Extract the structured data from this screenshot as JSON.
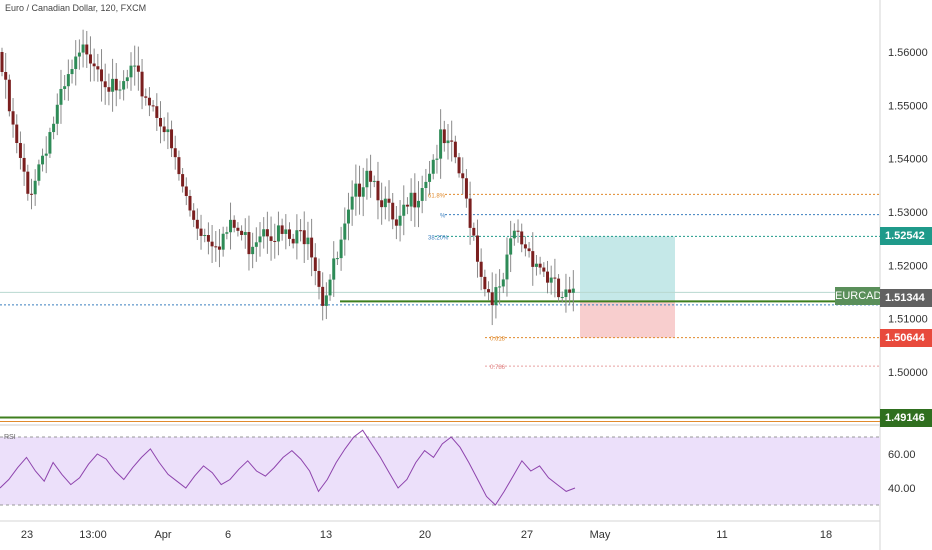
{
  "chart_title": "Euro / Canadian Dollar, 120, FXCM",
  "symbol_label": "EURCAD",
  "colors": {
    "up": "#2e8b57",
    "down": "#7a1f1f",
    "wick": "#8a8a8a",
    "target_zone": "#b2e0e0",
    "stop_zone": "#f7c6c6",
    "fib_orange": "#e08a2c",
    "fib_blue": "#3a7fbf",
    "support_green": "#3f7f1f",
    "rsi_bg": "#ece0fa",
    "rsi_line": "#8e44ad",
    "badge_teal": "#1f9a8a",
    "badge_red": "#e84a3c",
    "badge_green": "#2f6f1f",
    "badge_grey": "#616161"
  },
  "badges": {
    "target": "1.52542",
    "current": "1.51344",
    "stop": "1.50644",
    "support": "1.49146"
  },
  "fib_labels": [
    "61.8%",
    "%",
    "38.20%",
    "0.618",
    "0.786"
  ],
  "rsi_title": "RSI",
  "chart_data": [
    {
      "type": "line",
      "title": "Euro / Canadian Dollar, 120, FXCM",
      "series_kind": "candlestick",
      "y_axis_ticks": [
        "1.56000",
        "1.55000",
        "1.54000",
        "1.53000",
        "1.52000",
        "1.51000",
        "1.50000"
      ],
      "ylim": [
        1.4866,
        1.5696
      ],
      "x_tick_labels": [
        "23",
        "13:00",
        "Apr",
        "6",
        "13",
        "20",
        "27",
        "May",
        "11",
        "18"
      ],
      "price_path": [
        [
          0,
          1.56
        ],
        [
          4,
          1.545
        ],
        [
          8,
          1.533
        ],
        [
          12,
          1.541
        ],
        [
          16,
          1.549
        ],
        [
          20,
          1.556
        ],
        [
          24,
          1.561
        ],
        [
          28,
          1.557
        ],
        [
          32,
          1.551
        ],
        [
          36,
          1.556
        ],
        [
          40,
          1.552
        ],
        [
          44,
          1.548
        ],
        [
          48,
          1.539
        ],
        [
          52,
          1.53
        ],
        [
          56,
          1.526
        ],
        [
          60,
          1.525
        ],
        [
          64,
          1.527
        ],
        [
          68,
          1.524
        ],
        [
          72,
          1.528
        ],
        [
          76,
          1.526
        ],
        [
          80,
          1.524
        ],
        [
          84,
          1.527
        ],
        [
          88,
          1.514
        ],
        [
          92,
          1.521
        ],
        [
          96,
          1.531
        ],
        [
          100,
          1.539
        ],
        [
          104,
          1.533
        ],
        [
          108,
          1.526
        ],
        [
          112,
          1.532
        ],
        [
          116,
          1.537
        ],
        [
          120,
          1.543
        ],
        [
          124,
          1.54
        ],
        [
          128,
          1.529
        ],
        [
          132,
          1.516
        ],
        [
          136,
          1.514
        ],
        [
          140,
          1.526
        ],
        [
          144,
          1.523
        ],
        [
          148,
          1.519
        ],
        [
          152,
          1.514
        ],
        [
          156,
          1.5134
        ]
      ],
      "levels": {
        "target": 1.52542,
        "current": 1.51344,
        "stop": 1.50644,
        "support": 1.49146,
        "fib_618_upper": 1.5333,
        "fib_5_upper": 1.5295,
        "fib_382_upper": 1.5254,
        "fib_618_lower": 1.5064,
        "fib_786_lower": 1.5011,
        "support_zone": 1.5124
      }
    },
    {
      "type": "line",
      "title": "RSI",
      "y_axis_ticks": [
        "60.00",
        "40.00"
      ],
      "ylim": [
        25,
        75
      ],
      "band": [
        30,
        70
      ],
      "values": [
        40,
        45,
        52,
        58,
        50,
        44,
        55,
        48,
        42,
        46,
        54,
        60,
        57,
        50,
        45,
        52,
        58,
        63,
        55,
        48,
        44,
        40,
        47,
        53,
        49,
        42,
        45,
        51,
        56,
        50,
        47,
        52,
        58,
        62,
        57,
        50,
        38,
        45,
        55,
        63,
        70,
        74,
        66,
        58,
        49,
        40,
        45,
        55,
        62,
        58,
        66,
        70,
        64,
        55,
        45,
        35,
        30,
        38,
        47,
        56,
        50,
        53,
        46,
        42,
        38,
        40
      ]
    }
  ]
}
